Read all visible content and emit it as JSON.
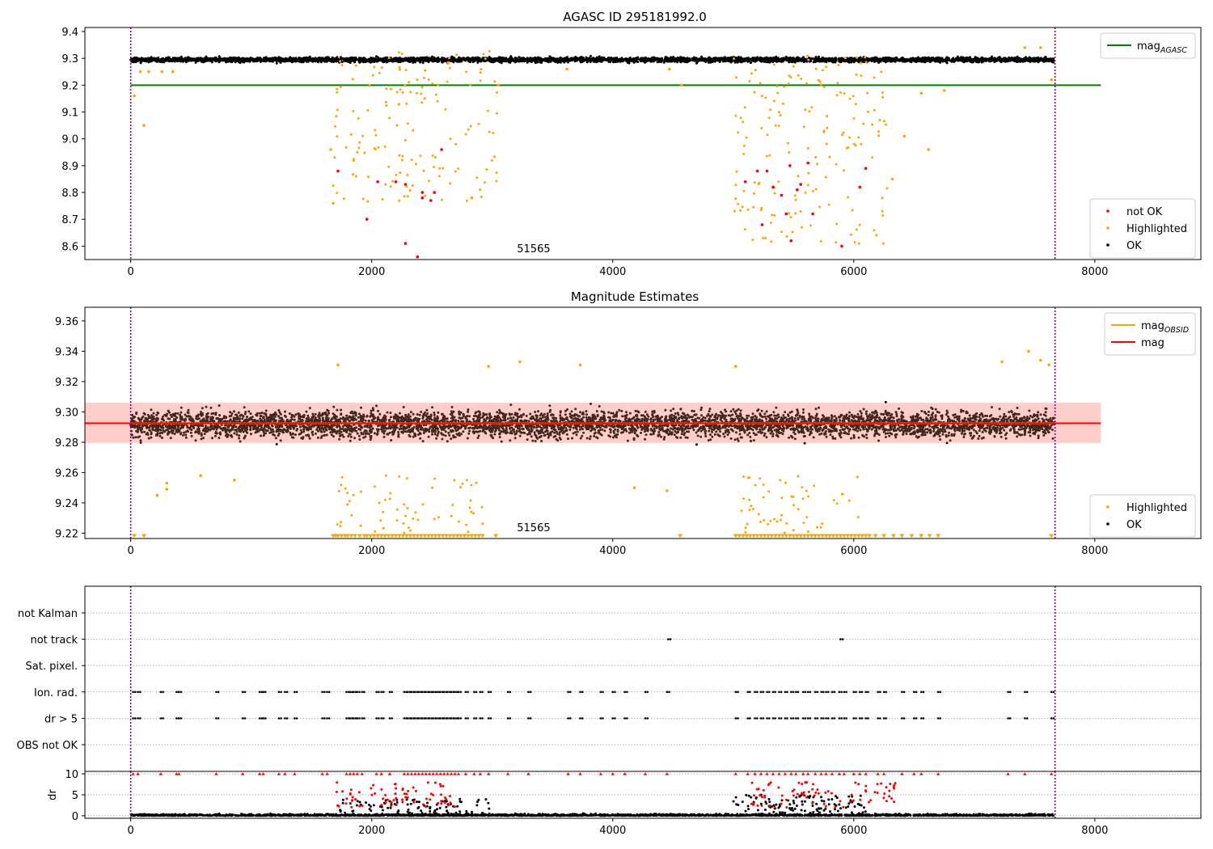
{
  "colors": {
    "ok": "#000000",
    "highlighted": "#ffa500",
    "not_ok": "#ff0000",
    "mag_agasc": "#008000",
    "mag_obsid": "#ffa500",
    "mag": "#ff0000",
    "band": "#ffb6c1",
    "obs_line": "#800080",
    "grid": "#b0b0b0"
  },
  "chart_data": [
    {
      "id": "agasc",
      "type": "scatter",
      "title": "AGASC ID 295181992.0",
      "xlabel": "",
      "ylabel": "",
      "xlim": [
        -380,
        8880
      ],
      "ylim": [
        8.55,
        9.415
      ],
      "x_ticks": [
        "0",
        "2000",
        "4000",
        "6000",
        "8000"
      ],
      "y_ticks": [
        "8.6",
        "8.7",
        "8.8",
        "8.9",
        "9.0",
        "9.1",
        "9.2",
        "9.3",
        "9.4"
      ],
      "grid": false,
      "legend_upper_placement": "upper right",
      "legend_lower_placement": "lower right",
      "legend_upper": [
        {
          "label": "mag",
          "sub": "AGASC",
          "color": "#008000",
          "kind": "line"
        }
      ],
      "legend_lower": [
        {
          "label": "not OK",
          "color": "#ff0000",
          "kind": "marker"
        },
        {
          "label": "Highlighted",
          "color": "#ffa500",
          "kind": "marker"
        },
        {
          "label": "OK",
          "color": "#000000",
          "kind": "marker"
        }
      ],
      "annotation": "51565",
      "annotation_x": 3800,
      "hline": {
        "y": 9.2,
        "x0": 0,
        "x1": 8050,
        "label": "mag AGASC"
      },
      "observation_bounds": [
        0,
        7670
      ],
      "series": [
        {
          "name": "OK",
          "kind": "band",
          "x_range": [
            0,
            7660
          ],
          "y_center": 9.295,
          "y_spread": 0.013,
          "n": 4200
        },
        {
          "name": "Highlighted",
          "kind": "clusters",
          "clusters": [
            {
              "x_range": [
                1680,
                3050
              ],
              "y_range": [
                8.76,
                9.33
              ],
              "n": 150
            },
            {
              "x_range": [
                5000,
                6280
              ],
              "y_range": [
                8.6,
                9.31
              ],
              "n": 170
            }
          ],
          "points": [
            [
              30,
              9.16
            ],
            [
              110,
              9.05
            ],
            [
              80,
              9.25
            ],
            [
              150,
              9.25
            ],
            [
              260,
              9.25
            ],
            [
              350,
              9.25
            ],
            [
              1680,
              8.76
            ],
            [
              1660,
              8.96
            ],
            [
              2830,
              8.78
            ],
            [
              3050,
              9.2
            ],
            [
              6560,
              9.17
            ],
            [
              6620,
              8.96
            ],
            [
              6750,
              9.18
            ],
            [
              6320,
              8.85
            ],
            [
              6420,
              9.01
            ],
            [
              7640,
              9.22
            ],
            [
              7420,
              9.34
            ],
            [
              7550,
              9.34
            ],
            [
              3620,
              9.26
            ],
            [
              4570,
              9.2
            ],
            [
              4470,
              9.26
            ]
          ]
        },
        {
          "name": "not OK",
          "points": [
            [
              1720,
              8.88
            ],
            [
              1960,
              8.7
            ],
            [
              2050,
              8.84
            ],
            [
              2200,
              8.84
            ],
            [
              2280,
              8.61
            ],
            [
              2380,
              8.56
            ],
            [
              2280,
              8.83
            ],
            [
              2420,
              8.8
            ],
            [
              2420,
              8.78
            ],
            [
              2490,
              8.77
            ],
            [
              2520,
              8.8
            ],
            [
              2580,
              8.96
            ],
            [
              5100,
              8.84
            ],
            [
              5200,
              8.88
            ],
            [
              5240,
              8.68
            ],
            [
              5280,
              8.88
            ],
            [
              5330,
              8.82
            ],
            [
              5400,
              8.79
            ],
            [
              5440,
              8.72
            ],
            [
              5480,
              8.62
            ],
            [
              5470,
              8.9
            ],
            [
              5530,
              8.81
            ],
            [
              5560,
              8.83
            ],
            [
              5620,
              8.91
            ],
            [
              5660,
              8.72
            ],
            [
              5900,
              8.6
            ],
            [
              6050,
              8.82
            ],
            [
              6100,
              8.89
            ]
          ]
        }
      ]
    },
    {
      "id": "estimates",
      "type": "scatter",
      "title": "Magnitude Estimates",
      "xlabel": "",
      "ylabel": "",
      "xlim": [
        -380,
        8880
      ],
      "ylim": [
        9.2165,
        9.369
      ],
      "x_ticks": [
        "0",
        "2000",
        "4000",
        "6000",
        "8000"
      ],
      "y_ticks": [
        "9.22",
        "9.24",
        "9.26",
        "9.28",
        "9.30",
        "9.32",
        "9.34",
        "9.36"
      ],
      "grid": false,
      "legend_upper_placement": "upper right",
      "legend_lower_placement": "lower right",
      "legend_upper": [
        {
          "label": "mag",
          "sub": "OBSID",
          "color": "#ffa500",
          "kind": "line"
        },
        {
          "label": "mag",
          "sub": "",
          "color": "#ff0000",
          "kind": "line"
        }
      ],
      "legend_lower": [
        {
          "label": "Highlighted",
          "color": "#ffa500",
          "kind": "marker"
        },
        {
          "label": "OK",
          "color": "#000000",
          "kind": "marker"
        }
      ],
      "annotation": "51565",
      "annotation_x": 3800,
      "mag_line": {
        "y": 9.2925,
        "x0": -380,
        "x1": 8050
      },
      "mag_obsid_line": {
        "y": 9.2925,
        "x0": 0,
        "x1": 7660
      },
      "band": {
        "y0": 9.2795,
        "y1": 9.306,
        "x0": -380,
        "x1": 8050
      },
      "observation_bounds": [
        0,
        7670
      ],
      "series": [
        {
          "name": "OK",
          "kind": "band",
          "x_range": [
            0,
            7660
          ],
          "y_center": 9.292,
          "y_spread": 0.013,
          "n": 5200
        },
        {
          "name": "Highlighted",
          "kind": "clusters",
          "clusters": [
            {
              "x_range": [
                1700,
                3000
              ],
              "y_range": [
                9.22,
                9.258
              ],
              "n": 60
            },
            {
              "x_range": [
                5050,
                6050
              ],
              "y_range": [
                9.22,
                9.258
              ],
              "n": 55
            }
          ],
          "points": [
            [
              1720,
              9.331
            ],
            [
              2970,
              9.33
            ],
            [
              3230,
              9.333
            ],
            [
              3730,
              9.331
            ],
            [
              5020,
              9.33
            ],
            [
              7230,
              9.333
            ],
            [
              7450,
              9.34
            ],
            [
              7550,
              9.334
            ],
            [
              7620,
              9.331
            ],
            [
              300,
              9.253
            ],
            [
              220,
              9.245
            ],
            [
              300,
              9.249
            ],
            [
              580,
              9.258
            ],
            [
              860,
              9.255
            ],
            [
              4180,
              9.25
            ],
            [
              4450,
              9.248
            ]
          ]
        },
        {
          "name": "Highlighted (clipped)",
          "marker": "triangle-down",
          "y": 9.2183,
          "x": [
            30,
            110,
            1680,
            1700,
            1720,
            1750,
            1780,
            1800,
            1830,
            1860,
            1900,
            1940,
            1960,
            1990,
            2020,
            2050,
            2080,
            2110,
            2140,
            2170,
            2200,
            2230,
            2260,
            2290,
            2320,
            2350,
            2380,
            2410,
            2440,
            2470,
            2500,
            2530,
            2560,
            2590,
            2620,
            2650,
            2680,
            2710,
            2740,
            2770,
            2800,
            2830,
            2860,
            2890,
            2920,
            3030,
            4560,
            5020,
            5050,
            5080,
            5110,
            5140,
            5170,
            5200,
            5230,
            5260,
            5290,
            5320,
            5350,
            5380,
            5410,
            5440,
            5470,
            5500,
            5530,
            5560,
            5590,
            5620,
            5650,
            5680,
            5710,
            5740,
            5770,
            5800,
            5830,
            5860,
            5890,
            5920,
            5950,
            5980,
            6010,
            6040,
            6070,
            6100,
            6130,
            6180,
            6250,
            6330,
            6400,
            6480,
            6560,
            6630,
            6700,
            7640
          ]
        }
      ]
    },
    {
      "id": "flags",
      "type": "scatter",
      "title": "",
      "xlabel": "",
      "ylabel": "",
      "xlim": [
        -380,
        8880
      ],
      "categories": [
        "not Kalman",
        "not track",
        "Sat. pixel.",
        "Ion. rad.",
        "dr > 5",
        "OBS not OK"
      ],
      "x_ticks": [],
      "grid": true,
      "observation_bounds": [
        0,
        7670
      ],
      "series": [
        {
          "name": "not track",
          "x": [
            4460,
            5890
          ]
        },
        {
          "name": "Ion. rad.",
          "x": [
            20,
            60,
            250,
            380,
            400,
            710,
            930,
            1070,
            1100,
            1230,
            1280,
            1360,
            1590,
            1630,
            1790,
            1820,
            1850,
            1880,
            1920,
            2040,
            2080,
            2150,
            2270,
            2300,
            2330,
            2360,
            2390,
            2420,
            2450,
            2480,
            2510,
            2540,
            2570,
            2600,
            2630,
            2660,
            2690,
            2720,
            2780,
            2850,
            2900,
            2970,
            3130,
            3300,
            3630,
            3730,
            3900,
            4000,
            4100,
            4270,
            4450,
            5020,
            5120,
            5180,
            5230,
            5280,
            5330,
            5380,
            5430,
            5480,
            5520,
            5580,
            5620,
            5680,
            5730,
            5770,
            5820,
            5880,
            5920,
            6000,
            6050,
            6100,
            6200,
            6250,
            6400,
            6500,
            6560,
            6700,
            7280,
            7420,
            7640
          ]
        },
        {
          "name": "dr > 5",
          "x": [
            20,
            60,
            250,
            380,
            400,
            710,
            930,
            1070,
            1100,
            1230,
            1280,
            1360,
            1590,
            1630,
            1790,
            1820,
            1850,
            1880,
            1920,
            2040,
            2080,
            2150,
            2270,
            2300,
            2330,
            2360,
            2390,
            2420,
            2450,
            2480,
            2510,
            2540,
            2570,
            2600,
            2630,
            2660,
            2690,
            2720,
            2780,
            2850,
            2900,
            2970,
            3130,
            3300,
            3630,
            3730,
            3900,
            4000,
            4100,
            4270,
            5020,
            5120,
            5180,
            5230,
            5280,
            5330,
            5380,
            5430,
            5480,
            5520,
            5580,
            5620,
            5680,
            5730,
            5770,
            5820,
            5880,
            5920,
            6000,
            6050,
            6100,
            6200,
            6250,
            6400,
            6500,
            6560,
            6700,
            7280,
            7420,
            7640
          ]
        }
      ]
    },
    {
      "id": "dr",
      "type": "scatter",
      "title": "",
      "xlabel": "",
      "ylabel": "dr",
      "xlim": [
        -380,
        8880
      ],
      "ylim": [
        -0.6,
        10.6
      ],
      "x_ticks": [
        "0",
        "2000",
        "4000",
        "6000",
        "8000"
      ],
      "y_ticks": [
        "0",
        "5",
        "10"
      ],
      "grid": true,
      "observation_bounds": [
        0,
        7670
      ],
      "series": [
        {
          "name": "OK",
          "kind": "floor",
          "x_range": [
            0,
            7660
          ],
          "y_max": 0.8,
          "n": 2600
        },
        {
          "name": "OK (scatter)",
          "kind": "clusters",
          "clusters": [
            {
              "x_range": [
                1700,
                3000
              ],
              "y_range": [
                0.5,
                4.0
              ],
              "n": 90
            },
            {
              "x_range": [
                5000,
                6100
              ],
              "y_range": [
                0.5,
                5.0
              ],
              "n": 110
            }
          ]
        },
        {
          "name": "not OK",
          "kind": "clusters",
          "clusters": [
            {
              "x_range": [
                1700,
                2700
              ],
              "y_range": [
                2.0,
                8.0
              ],
              "n": 70
            },
            {
              "x_range": [
                5150,
                6350
              ],
              "y_range": [
                2.0,
                8.0
              ],
              "n": 80
            }
          ]
        },
        {
          "name": "not OK (clipped)",
          "marker": "triangle-up",
          "y": 10,
          "x": [
            20,
            60,
            250,
            380,
            400,
            710,
            930,
            1070,
            1100,
            1230,
            1280,
            1360,
            1590,
            1630,
            1790,
            1820,
            1850,
            1880,
            1920,
            2040,
            2080,
            2150,
            2270,
            2300,
            2330,
            2360,
            2390,
            2420,
            2450,
            2480,
            2510,
            2540,
            2570,
            2600,
            2630,
            2660,
            2690,
            2720,
            2780,
            2850,
            2900,
            2970,
            3130,
            3300,
            3630,
            3730,
            3900,
            4000,
            4100,
            4270,
            4450,
            5020,
            5120,
            5180,
            5230,
            5280,
            5330,
            5380,
            5430,
            5480,
            5520,
            5580,
            5620,
            5680,
            5730,
            5770,
            5820,
            5880,
            5920,
            6000,
            6050,
            6100,
            6200,
            6250,
            6400,
            6500,
            6560,
            6700,
            7280,
            7420,
            7640
          ]
        }
      ]
    }
  ]
}
